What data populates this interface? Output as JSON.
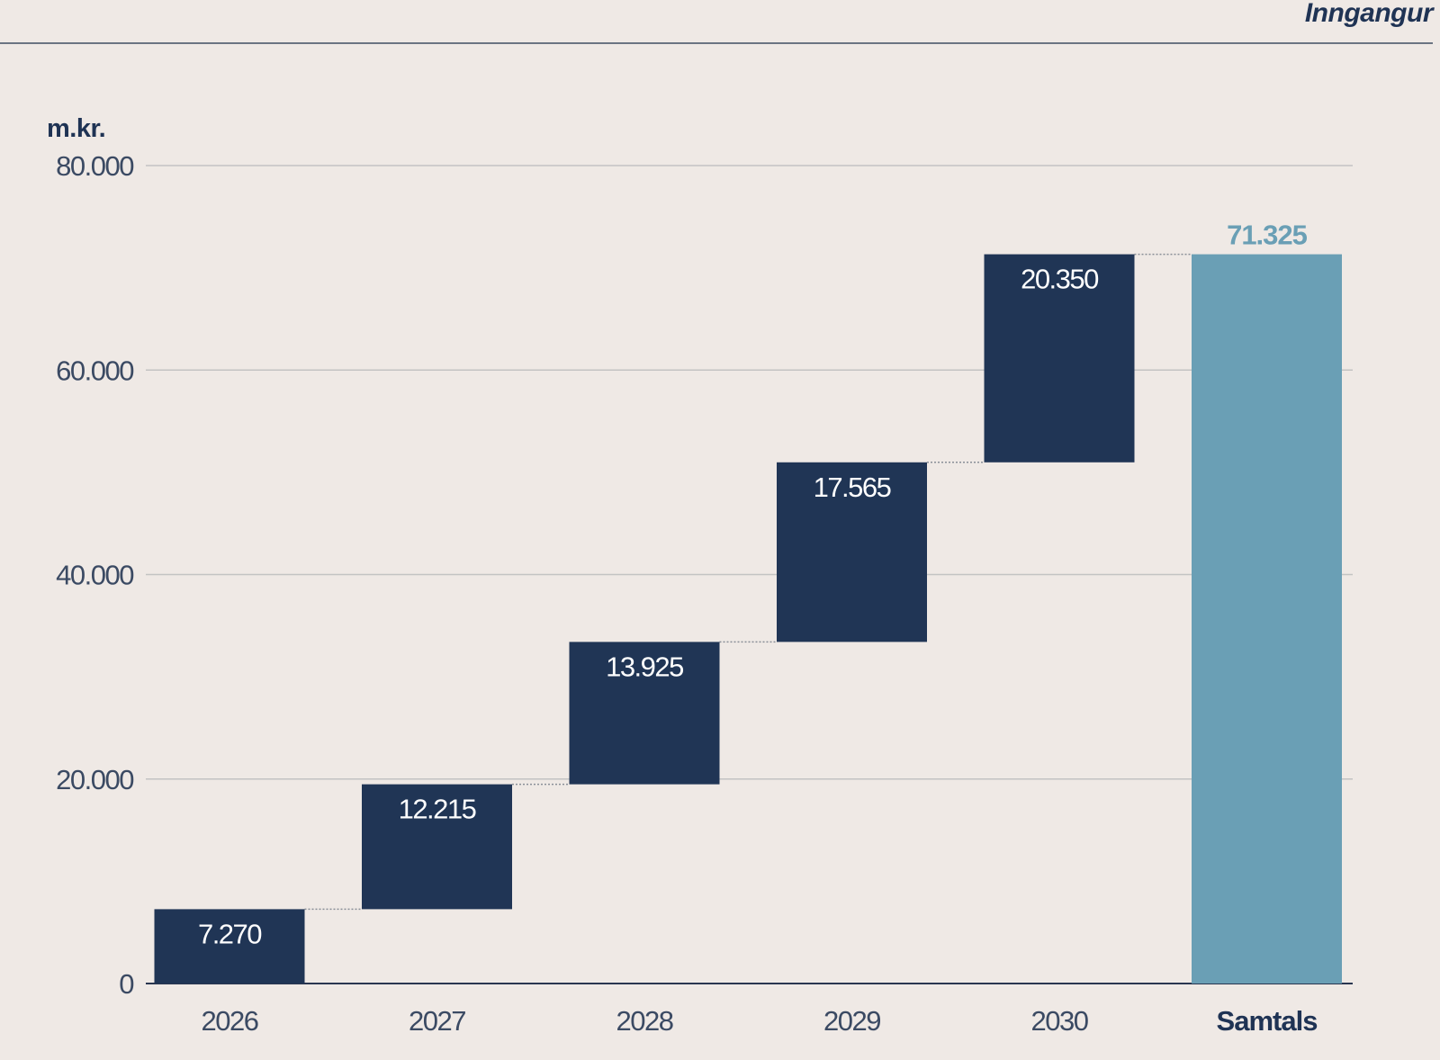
{
  "header": {
    "title": "Inngangur"
  },
  "chart_data": {
    "type": "bar",
    "subtype": "waterfall",
    "unit_label": "m.kr.",
    "categories": [
      "2026",
      "2027",
      "2028",
      "2029",
      "2030",
      "Samtals"
    ],
    "values": [
      7270,
      12215,
      13925,
      17565,
      20350,
      71325
    ],
    "value_labels": [
      "7.270",
      "12.215",
      "13.925",
      "17.565",
      "20.350",
      "71.325"
    ],
    "total_category": "Samtals",
    "ylim": [
      0,
      80000
    ],
    "yticks": [
      0,
      20000,
      40000,
      60000,
      80000
    ],
    "ytick_labels": [
      "0",
      "20.000",
      "40.000",
      "60.000",
      "80.000"
    ],
    "grid": true,
    "colors": {
      "increment": "#203555",
      "total": "#6a9fb5",
      "grid": "#c3c3c3"
    }
  }
}
